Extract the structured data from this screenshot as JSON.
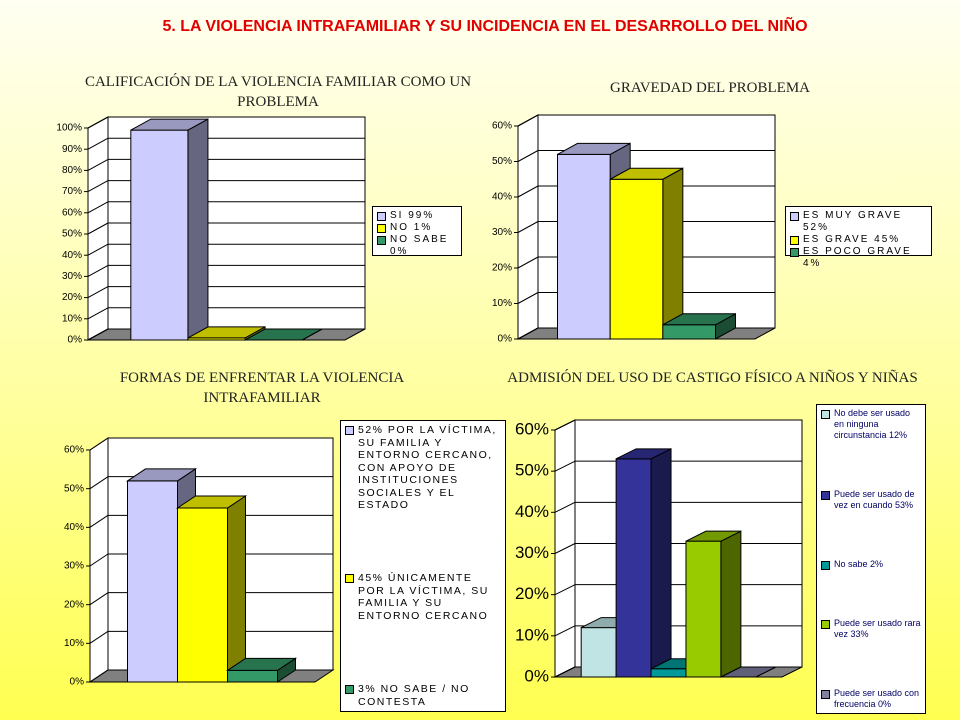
{
  "title": "5. LA VIOLENCIA INTRAFAMILIAR Y SU INCIDENCIA EN EL DESARROLLO DEL NIÑO",
  "chart_data": [
    {
      "type": "bar",
      "title": "CALIFICACIÓN DE LA VIOLENCIA FAMILIAR COMO UN PROBLEMA",
      "series": [
        {
          "name": "SI 99%",
          "color": "#ccccff",
          "values": [
            99
          ]
        },
        {
          "name": "NO 1%",
          "color": "#ffff00",
          "values": [
            1
          ]
        },
        {
          "name": "NO SABE 0%",
          "color": "#339966",
          "values": [
            0
          ]
        }
      ],
      "ylim": [
        0,
        100
      ],
      "yticks": [
        {
          "value": 0,
          "label": "0%"
        },
        {
          "value": 10,
          "label": "10%"
        },
        {
          "value": 20,
          "label": "20%"
        },
        {
          "value": 30,
          "label": "30%"
        },
        {
          "value": 40,
          "label": "40%"
        },
        {
          "value": 50,
          "label": "50%"
        },
        {
          "value": 60,
          "label": "60%"
        },
        {
          "value": 70,
          "label": "70%"
        },
        {
          "value": 80,
          "label": "80%"
        },
        {
          "value": 90,
          "label": "90%"
        },
        {
          "value": 100,
          "label": "100%"
        }
      ],
      "grid": true
    },
    {
      "type": "bar",
      "title": "GRAVEDAD DEL PROBLEMA",
      "series": [
        {
          "name": "ES MUY GRAVE 52%",
          "color": "#ccccff",
          "values": [
            52
          ]
        },
        {
          "name": "ES GRAVE 45%",
          "color": "#ffff00",
          "values": [
            45
          ]
        },
        {
          "name": "ES POCO GRAVE 4%",
          "color": "#339966",
          "values": [
            4
          ]
        }
      ],
      "ylim": [
        0,
        60
      ],
      "yticks": [
        {
          "value": 0,
          "label": "0%"
        },
        {
          "value": 10,
          "label": "10%"
        },
        {
          "value": 20,
          "label": "20%"
        },
        {
          "value": 30,
          "label": "30%"
        },
        {
          "value": 40,
          "label": "40%"
        },
        {
          "value": 50,
          "label": "50%"
        },
        {
          "value": 60,
          "label": "60%"
        }
      ],
      "grid": true
    },
    {
      "type": "bar",
      "title": "FORMAS DE ENFRENTAR LA VIOLENCIA INTRAFAMILIAR",
      "series": [
        {
          "name": "52% POR LA VÍCTIMA, SU FAMILIA Y ENTORNO CERCANO, CON APOYO DE INSTITUCIONES SOCIALES Y EL ESTADO",
          "color": "#ccccff",
          "values": [
            52
          ]
        },
        {
          "name": "45% ÚNICAMENTE POR LA VÍCTIMA, SU FAMILIA Y SU ENTORNO CERCANO",
          "color": "#ffff00",
          "values": [
            45
          ]
        },
        {
          "name": "3% NO SABE / NO CONTESTA",
          "color": "#339966",
          "values": [
            3
          ]
        }
      ],
      "ylim": [
        0,
        60
      ],
      "yticks": [
        {
          "value": 0,
          "label": "0%"
        },
        {
          "value": 10,
          "label": "10%"
        },
        {
          "value": 20,
          "label": "20%"
        },
        {
          "value": 30,
          "label": "30%"
        },
        {
          "value": 40,
          "label": "40%"
        },
        {
          "value": 50,
          "label": "50%"
        },
        {
          "value": 60,
          "label": "60%"
        }
      ],
      "grid": true
    },
    {
      "type": "bar",
      "title": "ADMISIÓN DEL USO DE CASTIGO FÍSICO A NIÑOS Y NIÑAS",
      "series": [
        {
          "name": "No debe ser usado en ninguna circunstancia 12%",
          "color": "#c0e4e4",
          "values": [
            12
          ]
        },
        {
          "name": "Puede ser usado de vez en cuando 53%",
          "color": "#333399",
          "values": [
            53
          ]
        },
        {
          "name": "No sabe 2%",
          "color": "#009999",
          "values": [
            2
          ]
        },
        {
          "name": "Puede ser usado rara vez 33%",
          "color": "#99cc00",
          "values": [
            33
          ]
        },
        {
          "name": "Puede ser usado con frecuencia 0%",
          "color": "#8080a0",
          "values": [
            0
          ]
        }
      ],
      "ylim": [
        0,
        60
      ],
      "yticks": [
        {
          "value": 0,
          "label": "0%"
        },
        {
          "value": 10,
          "label": "10%"
        },
        {
          "value": 20,
          "label": "20%"
        },
        {
          "value": 30,
          "label": "30%"
        },
        {
          "value": 40,
          "label": "40%"
        },
        {
          "value": 50,
          "label": "50%"
        },
        {
          "value": 60,
          "label": "60%"
        }
      ],
      "grid": true
    }
  ]
}
